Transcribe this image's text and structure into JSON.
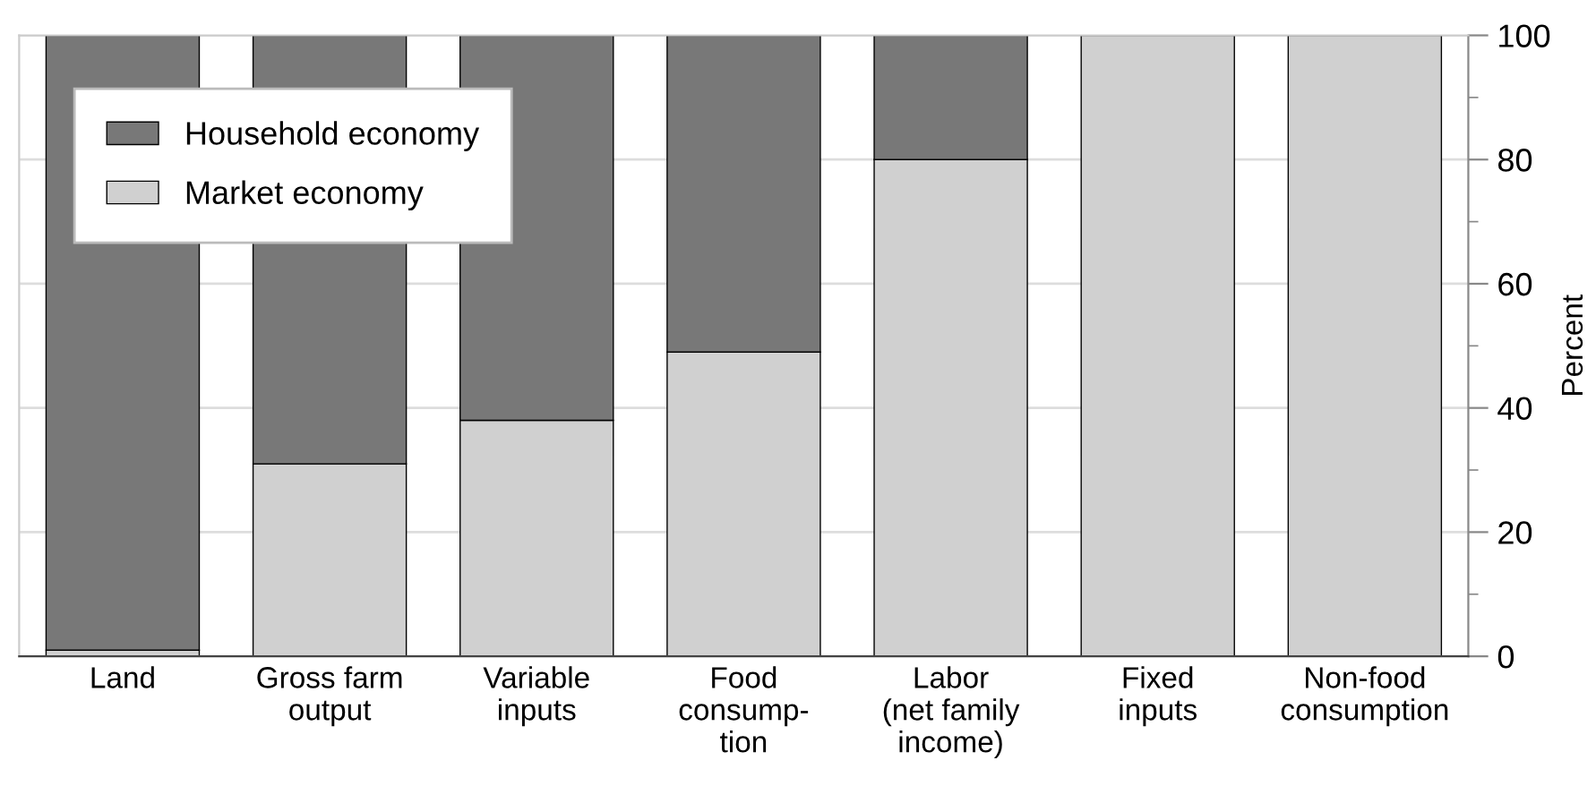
{
  "chart_data": {
    "type": "bar",
    "stacked": true,
    "ylabel": "Percent",
    "categories": [
      "Land",
      "Gross farm\noutput",
      "Variable\ninputs",
      "Food\nconsump-\ntion",
      "Labor\n(net family\nincome)",
      "Fixed\ninputs",
      "Non-food\nconsumption"
    ],
    "series": [
      {
        "name": "Market economy",
        "color": "#d0d0d0",
        "values": [
          1,
          31,
          38,
          49,
          80,
          100,
          100
        ]
      },
      {
        "name": "Household economy",
        "color": "#787878",
        "values": [
          99,
          69,
          62,
          51,
          20,
          0,
          0
        ]
      }
    ],
    "ylim": [
      0,
      100
    ],
    "yticks": [
      0,
      {
        "value": 10,
        "label": null
      },
      20,
      {
        "value": 30,
        "label": null
      },
      40,
      {
        "value": 50,
        "label": null
      },
      60,
      {
        "value": 70,
        "label": null
      },
      80,
      {
        "value": 90,
        "label": null
      },
      100
    ],
    "grid": "y",
    "legend": "top left"
  }
}
